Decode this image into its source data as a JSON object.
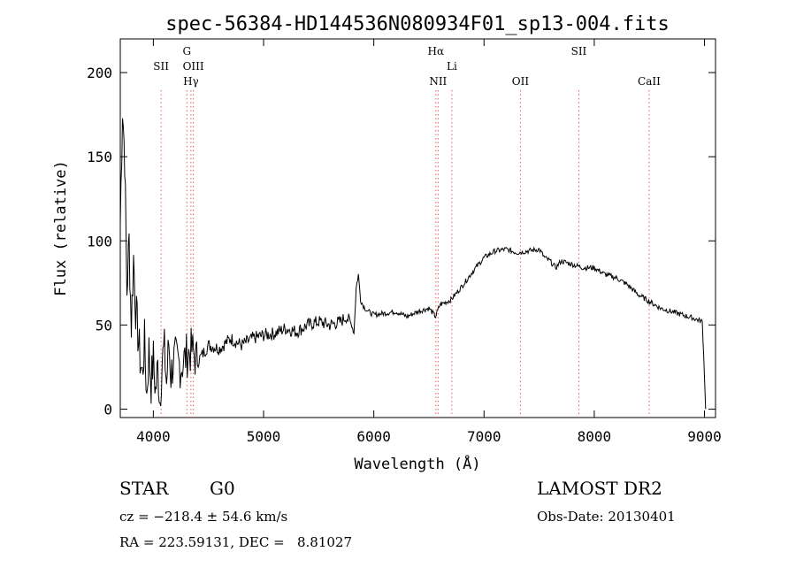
{
  "chart_data": {
    "type": "line",
    "title": "spec-56384-HD144536N080934F01_sp13-004.fits",
    "xlabel": "Wavelength (Å)",
    "ylabel": "Flux (relative)",
    "xlim": [
      3700,
      9100
    ],
    "ylim": [
      -5,
      220
    ],
    "x_ticks": [
      4000,
      5000,
      6000,
      7000,
      8000,
      9000
    ],
    "y_ticks": [
      0,
      50,
      100,
      150,
      200
    ],
    "grid": false,
    "legend": "none",
    "line_color": "#000000",
    "marker_color": "#e06060",
    "series": [
      {
        "x": [
          3700,
          3720,
          3740,
          3760,
          3780,
          3800,
          3820,
          3840,
          3860,
          3880,
          3900,
          3920,
          3940,
          3960,
          3980,
          4000,
          4020,
          4040,
          4060,
          4080,
          4100,
          4120,
          4140,
          4160,
          4180,
          4200,
          4250,
          4300,
          4350,
          4400,
          4450,
          4500,
          4600,
          4700,
          4800,
          4900,
          5000,
          5100,
          5200,
          5300,
          5400,
          5500,
          5600,
          5700,
          5750,
          5800,
          5820,
          5840,
          5860,
          5880,
          5900,
          5920,
          5950,
          6000,
          6100,
          6200,
          6300,
          6400,
          6500,
          6560,
          6600,
          6700,
          6800,
          6900,
          7000,
          7100,
          7200,
          7300,
          7400,
          7500,
          7550,
          7600,
          7650,
          7700,
          7800,
          7900,
          8000,
          8100,
          8200,
          8300,
          8400,
          8500,
          8600,
          8700,
          8800,
          8900,
          8980,
          9000,
          9010
        ],
        "y": [
          110,
          180,
          150,
          70,
          100,
          50,
          90,
          60,
          45,
          30,
          20,
          40,
          8,
          35,
          15,
          30,
          10,
          25,
          5,
          30,
          35,
          15,
          40,
          20,
          28,
          30,
          25,
          32,
          35,
          28,
          33,
          38,
          36,
          42,
          38,
          42,
          44,
          45,
          48,
          46,
          50,
          52,
          50,
          52,
          55,
          50,
          45,
          72,
          80,
          65,
          62,
          60,
          58,
          56,
          57,
          58,
          55,
          58,
          60,
          55,
          62,
          65,
          73,
          82,
          90,
          94,
          95,
          93,
          94,
          95,
          90,
          88,
          84,
          88,
          86,
          84,
          84,
          80,
          78,
          74,
          68,
          64,
          60,
          58,
          56,
          54,
          52,
          20,
          0
        ]
      }
    ],
    "lines": [
      {
        "name": "SII",
        "x": 4070
      },
      {
        "name": "Hγ",
        "x": 4341
      },
      {
        "name": "G",
        "x": 4304
      },
      {
        "name": "OIII",
        "x": 4363
      },
      {
        "name": "NII",
        "x": 6583
      },
      {
        "name": "Hα",
        "x": 6563
      },
      {
        "name": "Li",
        "x": 6708
      },
      {
        "name": "OII",
        "x": 7330
      },
      {
        "name": "SII",
        "x": 7860
      },
      {
        "name": "CaII",
        "x": 8498
      }
    ]
  },
  "info": {
    "type_label": "STAR",
    "subclass": "G0",
    "survey": "LAMOST DR2",
    "cz_line": "cz = −218.4 ± 54.6 km/s",
    "obs_date": "Obs-Date: 20130401",
    "coords": "RA = 223.59131, DEC =   8.81027"
  }
}
